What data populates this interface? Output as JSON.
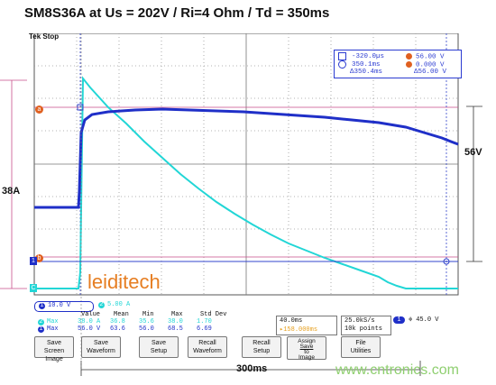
{
  "title": "SM8S36A at Us = 202V / Ri=4 Ohm / Td = 350ms",
  "scope": {
    "status": "Tek Stop",
    "marker_1": "1",
    "marker_a": "a",
    "marker_b": "b",
    "marker_c": "C"
  },
  "cursors": {
    "row1": {
      "time": "-320.0µs",
      "value": "56.00 V"
    },
    "row2": {
      "time": "350.1ms",
      "value": "0.000 V"
    },
    "row3": {
      "time": "Δ350.4ms",
      "value": "Δ56.00 V"
    }
  },
  "side_labels": {
    "left_current": "38A",
    "right_voltage": "56V",
    "bottom_time": "300ms"
  },
  "watermark": "leiditech",
  "footer_watermark": "www.cntronics.com",
  "channels": {
    "ch1_scale": "10.0 V",
    "ch2_scale": "5.00 A",
    "ch2_label": "2",
    "ch1_label": "1"
  },
  "measure": {
    "headers": [
      "Value",
      "Mean",
      "Min",
      "Max",
      "Std Dev"
    ],
    "rows": [
      {
        "label": "Max",
        "ch": "2",
        "cells": [
          "38.0 A",
          "36.8",
          "35.6",
          "38.0",
          "1.70"
        ]
      },
      {
        "label": "Max",
        "ch": "1",
        "cells": [
          "56.0 V",
          "63.6",
          "56.0",
          "68.5",
          "6.69"
        ]
      }
    ]
  },
  "timebase": {
    "scale": "40.0ms",
    "position": "158.000ms"
  },
  "acq": {
    "rate": "25.0kS/s",
    "points": "10k points"
  },
  "trigger": {
    "channel": "1",
    "level": "45.0 V"
  },
  "buttons": [
    {
      "line1": "Save",
      "line2": "Screen Image"
    },
    {
      "line1": "Save",
      "line2": "Waveform"
    },
    {
      "line1": "Save",
      "line2": "Setup"
    },
    {
      "line1": "Recall",
      "line2": "Waveform"
    },
    {
      "line1": "Recall",
      "line2": "Setup"
    },
    {
      "line1": "Assign",
      "line2": "Save",
      "line3": "to",
      "line4": "Image"
    },
    {
      "line1": "File",
      "line2": "Utilities"
    }
  ],
  "colors": {
    "ch1": "#1f2fc8",
    "ch2": "#22d6d6",
    "grid": "#b0b0b0",
    "cursor": "#d0508a"
  }
}
